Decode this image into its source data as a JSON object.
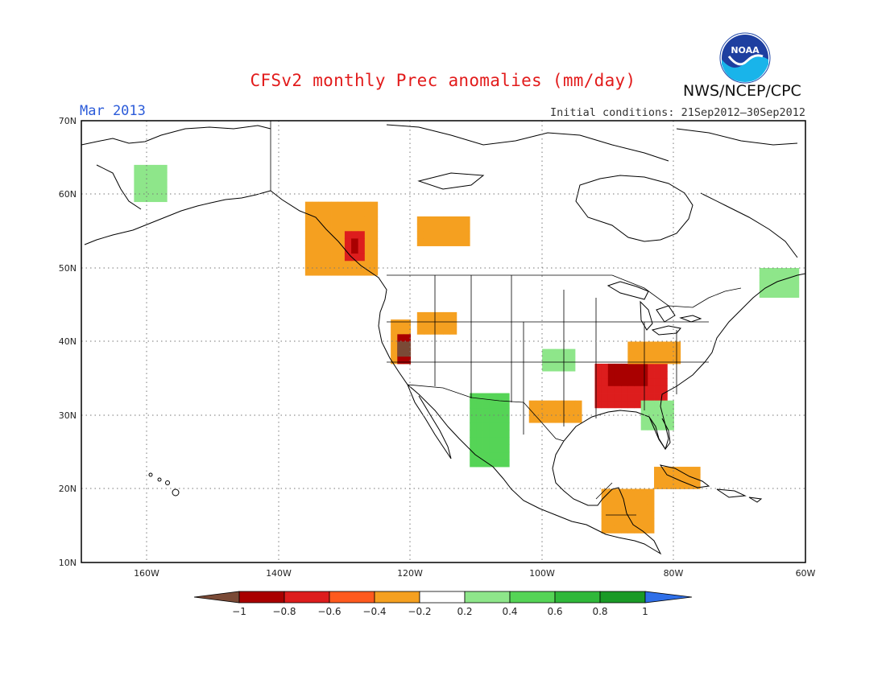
{
  "header": {
    "title": "CFSv2 monthly Prec anomalies (mm/day)",
    "period": "Mar 2013",
    "initial_conditions": "Initial conditions: 21Sep2012–30Sep2012",
    "agency": "NWS/NCEP/CPC",
    "logo_text": "NOAA"
  },
  "map": {
    "lat_labels": [
      "70N",
      "60N",
      "50N",
      "40N",
      "30N",
      "20N",
      "10N"
    ],
    "lon_labels": [
      "160W",
      "140W",
      "120W",
      "100W",
      "80W",
      "60W"
    ],
    "extent": {
      "lon_min": -171,
      "lon_max": -61,
      "lat_min": 10,
      "lat_max": 70
    },
    "grid": true
  },
  "colorbar": {
    "labels": [
      "−1",
      "−0.8",
      "−0.6",
      "−0.4",
      "−0.2",
      "0.2",
      "0.4",
      "0.6",
      "0.8",
      "1"
    ],
    "colors": [
      "#7a4a36",
      "#a90000",
      "#dd1d1d",
      "#ff5a1e",
      "#f5a020",
      "#ffffff",
      "#8ee68a",
      "#55d456",
      "#2fb83a",
      "#1a9a26",
      "#2f6fe8"
    ]
  },
  "chart_data": {
    "type": "heatmap",
    "variable": "Prec anomalies (mm/day)",
    "colors": {
      "-5": "#7a4a36",
      "-4": "#a90000",
      "-3": "#dd1d1d",
      "-2": "#ff5a1e",
      "-1": "#f5a020",
      "1": "#8ee68a",
      "2": "#55d456",
      "3": "#2fb83a",
      "4": "#1a9a26"
    },
    "regions": [
      {
        "lat": [
          49,
          59
        ],
        "lon": [
          -137,
          -126
        ],
        "level": -1
      },
      {
        "lat": [
          51,
          55
        ],
        "lon": [
          -131,
          -128
        ],
        "level": -3
      },
      {
        "lat": [
          52,
          54
        ],
        "lon": [
          -130,
          -129
        ],
        "level": -4
      },
      {
        "lat": [
          53,
          57
        ],
        "lon": [
          -120,
          -112
        ],
        "level": -1
      },
      {
        "lat": [
          37,
          43
        ],
        "lon": [
          -124,
          -121
        ],
        "level": -1
      },
      {
        "lat": [
          37,
          41
        ],
        "lon": [
          -123,
          -121
        ],
        "level": -4
      },
      {
        "lat": [
          38,
          40
        ],
        "lon": [
          -123,
          -121
        ],
        "level": -5
      },
      {
        "lat": [
          41,
          44
        ],
        "lon": [
          -120,
          -114
        ],
        "level": -1
      },
      {
        "lat": [
          29,
          32
        ],
        "lon": [
          -103,
          -95
        ],
        "level": -1
      },
      {
        "lat": [
          31,
          37
        ],
        "lon": [
          -93,
          -82
        ],
        "level": -3
      },
      {
        "lat": [
          34,
          37
        ],
        "lon": [
          -91,
          -85
        ],
        "level": -4
      },
      {
        "lat": [
          37,
          40
        ],
        "lon": [
          -88,
          -80
        ],
        "level": -1
      },
      {
        "lat": [
          14,
          20
        ],
        "lon": [
          -92,
          -84
        ],
        "level": -1
      },
      {
        "lat": [
          20,
          23
        ],
        "lon": [
          -84,
          -77
        ],
        "level": -1
      },
      {
        "lat": [
          23,
          33
        ],
        "lon": [
          -112,
          -106
        ],
        "level": 2
      },
      {
        "lat": [
          36,
          39
        ],
        "lon": [
          -101,
          -96
        ],
        "level": 1
      },
      {
        "lat": [
          28,
          32
        ],
        "lon": [
          -86,
          -81
        ],
        "level": 1
      },
      {
        "lat": [
          59,
          64
        ],
        "lon": [
          -163,
          -158
        ],
        "level": 1
      },
      {
        "lat": [
          46,
          50
        ],
        "lon": [
          -68,
          -62
        ],
        "level": 1
      }
    ]
  }
}
